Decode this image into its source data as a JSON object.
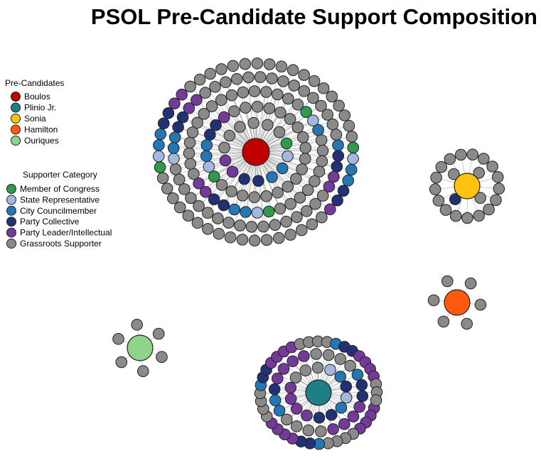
{
  "title": "PSOL Pre-Candidate Support Composition",
  "legends": {
    "candidates_title": "Pre-Candidates",
    "categories_title": "Supporter Category"
  },
  "candidates": [
    {
      "id": "boulos",
      "name": "Boulos",
      "color": "#c00000"
    },
    {
      "id": "plinio",
      "name": "Plinio Jr.",
      "color": "#1f7f86"
    },
    {
      "id": "sonia",
      "name": "Sonia",
      "color": "#ffc20e"
    },
    {
      "id": "hamilton",
      "name": "Hamilton",
      "color": "#ff5a0d"
    },
    {
      "id": "ouriques",
      "name": "Ouriques",
      "color": "#90d38b"
    }
  ],
  "categories": [
    {
      "id": "congress",
      "name": "Member of Congress",
      "color": "#2e9a4a"
    },
    {
      "id": "state",
      "name": "State Representative",
      "color": "#a3b7df"
    },
    {
      "id": "council",
      "name": "City Councilmember",
      "color": "#2576b5"
    },
    {
      "id": "collective",
      "name": "Party Collective",
      "color": "#213173"
    },
    {
      "id": "leader",
      "name": "Party Leader/Intellectual",
      "color": "#733a9a"
    },
    {
      "id": "grassroots",
      "name": "Grassroots Supporter",
      "color": "#8a8a8a"
    }
  ],
  "clusters": [
    {
      "candidate": "boulos",
      "supporters": {
        "congress": 6,
        "state": 7,
        "council": 14,
        "collective": 14,
        "leader": 12,
        "grassroots": 117
      }
    },
    {
      "candidate": "plinio",
      "supporters": {
        "congress": 0,
        "state": 2,
        "council": 8,
        "collective": 12,
        "leader": 28,
        "grassroots": 26
      }
    },
    {
      "candidate": "sonia",
      "supporters": {
        "congress": 0,
        "state": 0,
        "council": 0,
        "collective": 1,
        "leader": 0,
        "grassroots": 20
      }
    },
    {
      "candidate": "hamilton",
      "supporters": {
        "congress": 0,
        "state": 0,
        "council": 0,
        "collective": 0,
        "leader": 0,
        "grassroots": 6
      }
    },
    {
      "candidate": "ouriques",
      "supporters": {
        "congress": 0,
        "state": 0,
        "council": 0,
        "collective": 0,
        "leader": 0,
        "grassroots": 6
      }
    }
  ]
}
